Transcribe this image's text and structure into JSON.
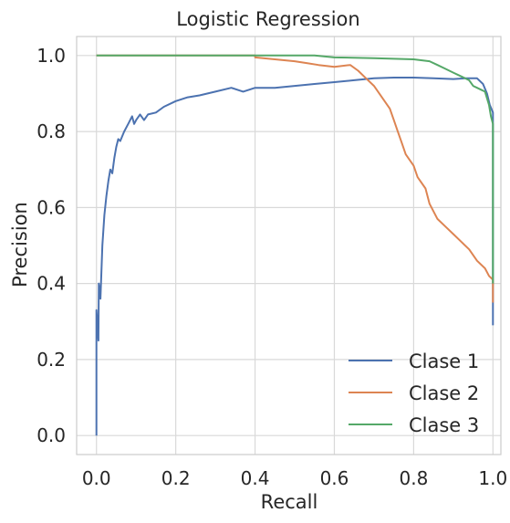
{
  "chart_data": {
    "type": "line",
    "title": "Logistic Regression",
    "xlabel": "Recall",
    "ylabel": "Precision",
    "xlim": [
      -0.05,
      1.02
    ],
    "ylim": [
      -0.05,
      1.05
    ],
    "x_ticks": [
      0.0,
      0.2,
      0.4,
      0.6,
      0.8,
      1.0
    ],
    "y_ticks": [
      0.0,
      0.2,
      0.4,
      0.6,
      0.8,
      1.0
    ],
    "x_tick_labels": [
      "0.0",
      "0.2",
      "0.4",
      "0.6",
      "0.8",
      "1.0"
    ],
    "y_tick_labels": [
      "0.0",
      "0.2",
      "0.4",
      "0.6",
      "0.8",
      "1.0"
    ],
    "grid": true,
    "legend_position": "lower-right",
    "series": [
      {
        "name": "Clase 1",
        "color": "#4c72b0",
        "points": [
          [
            0.0,
            0.0
          ],
          [
            0.0,
            0.33
          ],
          [
            0.005,
            0.25
          ],
          [
            0.006,
            0.4
          ],
          [
            0.01,
            0.36
          ],
          [
            0.015,
            0.5
          ],
          [
            0.02,
            0.58
          ],
          [
            0.025,
            0.63
          ],
          [
            0.03,
            0.67
          ],
          [
            0.035,
            0.7
          ],
          [
            0.04,
            0.69
          ],
          [
            0.045,
            0.73
          ],
          [
            0.05,
            0.76
          ],
          [
            0.055,
            0.78
          ],
          [
            0.06,
            0.775
          ],
          [
            0.07,
            0.8
          ],
          [
            0.08,
            0.82
          ],
          [
            0.09,
            0.84
          ],
          [
            0.095,
            0.82
          ],
          [
            0.1,
            0.83
          ],
          [
            0.11,
            0.845
          ],
          [
            0.12,
            0.83
          ],
          [
            0.13,
            0.845
          ],
          [
            0.15,
            0.85
          ],
          [
            0.17,
            0.865
          ],
          [
            0.2,
            0.88
          ],
          [
            0.23,
            0.89
          ],
          [
            0.26,
            0.895
          ],
          [
            0.3,
            0.905
          ],
          [
            0.34,
            0.915
          ],
          [
            0.37,
            0.905
          ],
          [
            0.4,
            0.915
          ],
          [
            0.45,
            0.915
          ],
          [
            0.5,
            0.92
          ],
          [
            0.55,
            0.925
          ],
          [
            0.6,
            0.93
          ],
          [
            0.65,
            0.935
          ],
          [
            0.7,
            0.94
          ],
          [
            0.75,
            0.942
          ],
          [
            0.8,
            0.942
          ],
          [
            0.85,
            0.94
          ],
          [
            0.9,
            0.938
          ],
          [
            0.93,
            0.94
          ],
          [
            0.96,
            0.94
          ],
          [
            0.975,
            0.925
          ],
          [
            0.985,
            0.9
          ],
          [
            0.992,
            0.87
          ],
          [
            1.0,
            0.85
          ],
          [
            1.0,
            0.29
          ]
        ]
      },
      {
        "name": "Clase 2",
        "color": "#dd8452",
        "points": [
          [
            0.0,
            1.0
          ],
          [
            0.4,
            1.0
          ],
          [
            0.4,
            0.995
          ],
          [
            0.45,
            0.99
          ],
          [
            0.5,
            0.985
          ],
          [
            0.53,
            0.98
          ],
          [
            0.56,
            0.975
          ],
          [
            0.6,
            0.97
          ],
          [
            0.64,
            0.975
          ],
          [
            0.66,
            0.96
          ],
          [
            0.68,
            0.94
          ],
          [
            0.7,
            0.92
          ],
          [
            0.72,
            0.89
          ],
          [
            0.74,
            0.86
          ],
          [
            0.75,
            0.83
          ],
          [
            0.76,
            0.8
          ],
          [
            0.77,
            0.77
          ],
          [
            0.78,
            0.74
          ],
          [
            0.8,
            0.71
          ],
          [
            0.81,
            0.68
          ],
          [
            0.83,
            0.65
          ],
          [
            0.84,
            0.61
          ],
          [
            0.86,
            0.57
          ],
          [
            0.88,
            0.55
          ],
          [
            0.9,
            0.53
          ],
          [
            0.92,
            0.51
          ],
          [
            0.94,
            0.49
          ],
          [
            0.96,
            0.46
          ],
          [
            0.98,
            0.44
          ],
          [
            0.99,
            0.42
          ],
          [
            1.0,
            0.41
          ],
          [
            1.0,
            0.35
          ]
        ]
      },
      {
        "name": "Clase 3",
        "color": "#55a868",
        "points": [
          [
            0.0,
            1.0
          ],
          [
            0.55,
            1.0
          ],
          [
            0.6,
            0.995
          ],
          [
            0.7,
            0.993
          ],
          [
            0.8,
            0.99
          ],
          [
            0.84,
            0.985
          ],
          [
            0.86,
            0.975
          ],
          [
            0.88,
            0.965
          ],
          [
            0.9,
            0.955
          ],
          [
            0.92,
            0.945
          ],
          [
            0.94,
            0.935
          ],
          [
            0.95,
            0.92
          ],
          [
            0.96,
            0.915
          ],
          [
            0.97,
            0.91
          ],
          [
            0.98,
            0.905
          ],
          [
            0.99,
            0.87
          ],
          [
            0.995,
            0.84
          ],
          [
            1.0,
            0.82
          ],
          [
            1.0,
            0.4
          ]
        ]
      }
    ]
  }
}
